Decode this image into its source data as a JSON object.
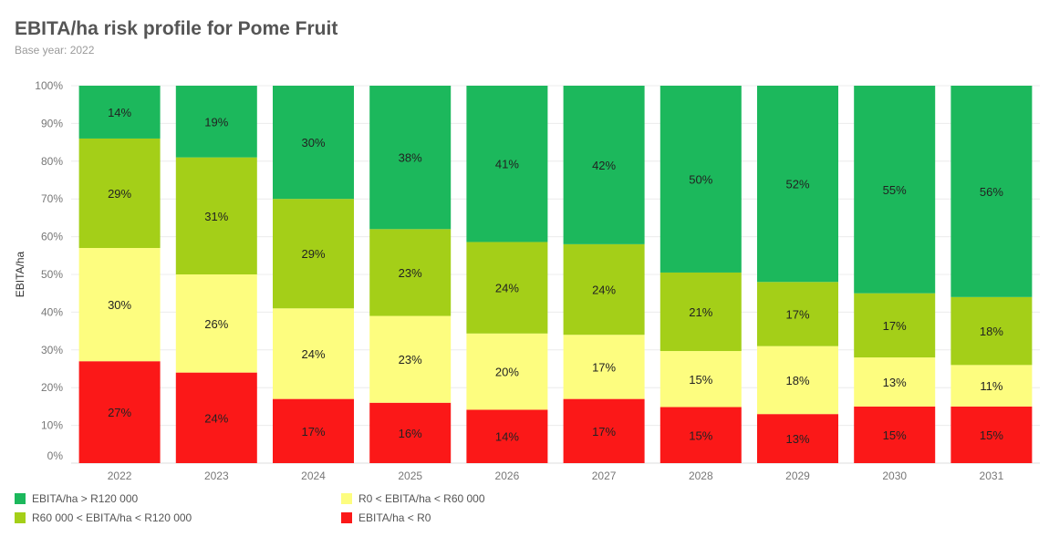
{
  "title": "EBITA/ha risk profile for Pome Fruit",
  "subtitle": "Base year: 2022",
  "colors": {
    "high": "#1cb85c",
    "upper_mid": "#a4cf18",
    "lower_mid": "#fdfd7f",
    "low": "#fb1818"
  },
  "legend": [
    {
      "label": "EBITA/ha > R120 000",
      "color_key": "high"
    },
    {
      "label": "R0 < EBITA/ha < R60 000",
      "color_key": "lower_mid"
    },
    {
      "label": "R60 000 < EBITA/ha < R120 000",
      "color_key": "upper_mid"
    },
    {
      "label": "EBITA/ha < R0",
      "color_key": "low"
    }
  ],
  "chart_data": {
    "type": "bar",
    "stacked": true,
    "title": "EBITA/ha risk profile for Pome Fruit",
    "subtitle": "Base year: 2022",
    "xlabel": "",
    "ylabel": "EBITA/ha",
    "ylim": [
      0,
      100
    ],
    "yticks": [
      "0%",
      "10%",
      "20%",
      "30%",
      "40%",
      "50%",
      "60%",
      "70%",
      "80%",
      "90%",
      "100%"
    ],
    "categories": [
      "2022",
      "2023",
      "2024",
      "2025",
      "2026",
      "2027",
      "2028",
      "2029",
      "2030",
      "2031"
    ],
    "series": [
      {
        "name": "EBITA/ha < R0",
        "color_key": "low",
        "values": [
          27,
          24,
          17,
          16,
          14,
          17,
          15,
          13,
          15,
          15
        ],
        "labels": [
          "27%",
          "24%",
          "17%",
          "16%",
          "14%",
          "17%",
          "15%",
          "13%",
          "15%",
          "15%"
        ]
      },
      {
        "name": "R0 < EBITA/ha < R60 000",
        "color_key": "lower_mid",
        "values": [
          30,
          26,
          24,
          23,
          20,
          17,
          15,
          18,
          13,
          11
        ],
        "labels": [
          "30%",
          "26%",
          "24%",
          "23%",
          "20%",
          "17%",
          "15%",
          "18%",
          "13%",
          "11%"
        ]
      },
      {
        "name": "R60 000 < EBITA/ha < R120 000",
        "color_key": "upper_mid",
        "values": [
          29,
          31,
          29,
          23,
          24,
          24,
          21,
          17,
          17,
          18
        ],
        "labels": [
          "29%",
          "31%",
          "29%",
          "23%",
          "24%",
          "24%",
          "21%",
          "17%",
          "17%",
          "18%"
        ]
      },
      {
        "name": "EBITA/ha > R120 000",
        "color_key": "high",
        "values": [
          14,
          19,
          30,
          38,
          41,
          42,
          50,
          52,
          55,
          56
        ],
        "labels": [
          "14%",
          "19%",
          "30%",
          "38%",
          "41%",
          "42%",
          "50%",
          "52%",
          "55%",
          "56%"
        ]
      }
    ]
  }
}
